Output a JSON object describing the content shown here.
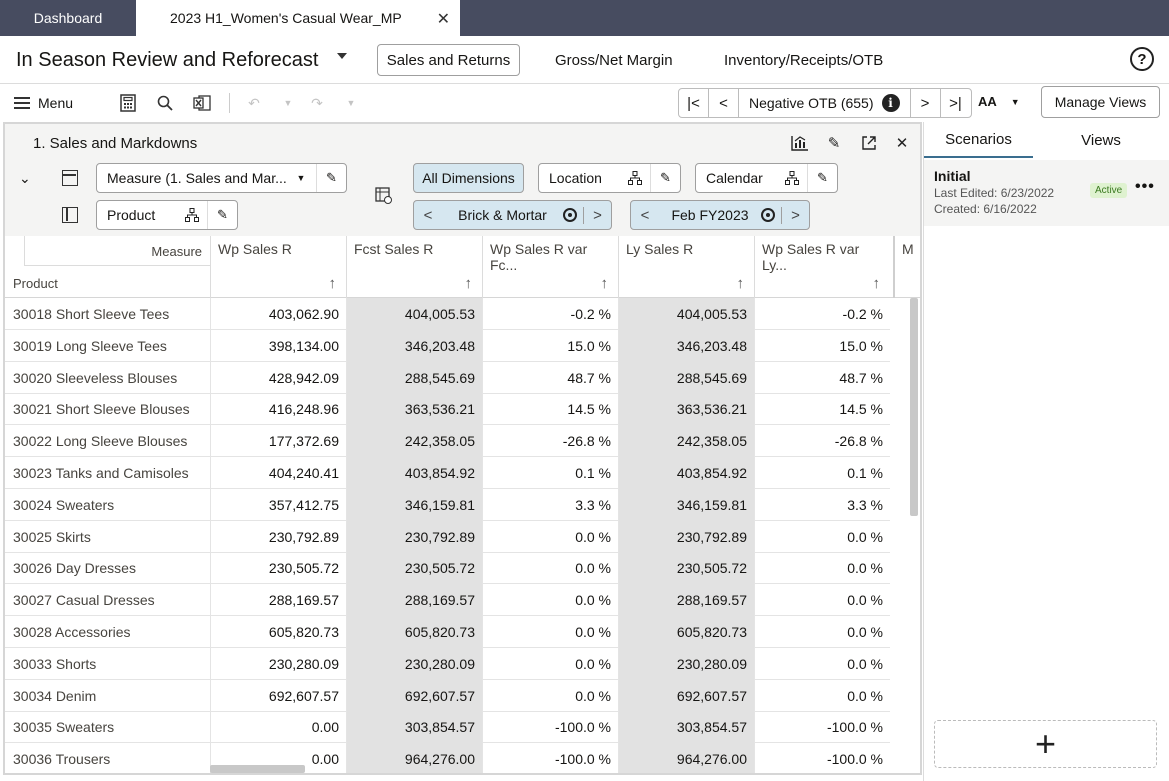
{
  "tabs": {
    "dashboard": "Dashboard",
    "active": "2023 H1_Women's Casual Wear_MP",
    "close_glyph": "✕"
  },
  "header": {
    "title": "In Season Review and Reforecast",
    "tabs": [
      "Sales and Returns",
      "Gross/Net Margin",
      "Inventory/Receipts/OTB"
    ],
    "help": "?"
  },
  "toolbar": {
    "menu_label": "Menu",
    "nav_label": "Negative OTB (655)",
    "info_glyph": "i",
    "font_size_label": "AA",
    "manage_views": "Manage Views"
  },
  "panel": {
    "title": "1. Sales and Markdowns",
    "measure_selector": "Measure (1. Sales and Mar...",
    "all_dimensions": "All Dimensions",
    "location": "Location",
    "calendar": "Calendar",
    "product": "Product",
    "location_page": "Brick & Mortar",
    "calendar_page": "Feb FY2023"
  },
  "grid": {
    "measure_header": "Measure",
    "product_header": "Product",
    "columns": [
      "Wp Sales R",
      "Fcst Sales R",
      "Wp Sales R var Fc...",
      "Ly Sales R",
      "Wp Sales R var Ly...",
      "M"
    ],
    "rows": [
      {
        "name": "30018 Short Sleeve Tees",
        "c1": "403,062.90",
        "c2": "404,005.53",
        "c3": "-0.2 %",
        "c4": "404,005.53",
        "c5": "-0.2 %"
      },
      {
        "name": "30019 Long Sleeve Tees",
        "c1": "398,134.00",
        "c2": "346,203.48",
        "c3": "15.0 %",
        "c4": "346,203.48",
        "c5": "15.0 %"
      },
      {
        "name": "30020 Sleeveless Blouses",
        "c1": "428,942.09",
        "c2": "288,545.69",
        "c3": "48.7 %",
        "c4": "288,545.69",
        "c5": "48.7 %"
      },
      {
        "name": "30021 Short Sleeve Blouses",
        "c1": "416,248.96",
        "c2": "363,536.21",
        "c3": "14.5 %",
        "c4": "363,536.21",
        "c5": "14.5 %"
      },
      {
        "name": "30022 Long Sleeve Blouses",
        "c1": "177,372.69",
        "c2": "242,358.05",
        "c3": "-26.8 %",
        "c4": "242,358.05",
        "c5": "-26.8 %"
      },
      {
        "name": "30023 Tanks and Camisoles",
        "c1": "404,240.41",
        "c2": "403,854.92",
        "c3": "0.1 %",
        "c4": "403,854.92",
        "c5": "0.1 %"
      },
      {
        "name": "30024 Sweaters",
        "c1": "357,412.75",
        "c2": "346,159.81",
        "c3": "3.3 %",
        "c4": "346,159.81",
        "c5": "3.3 %"
      },
      {
        "name": "30025 Skirts",
        "c1": "230,792.89",
        "c2": "230,792.89",
        "c3": "0.0 %",
        "c4": "230,792.89",
        "c5": "0.0 %"
      },
      {
        "name": "30026 Day Dresses",
        "c1": "230,505.72",
        "c2": "230,505.72",
        "c3": "0.0 %",
        "c4": "230,505.72",
        "c5": "0.0 %"
      },
      {
        "name": "30027 Casual Dresses",
        "c1": "288,169.57",
        "c2": "288,169.57",
        "c3": "0.0 %",
        "c4": "288,169.57",
        "c5": "0.0 %"
      },
      {
        "name": "30028 Accessories",
        "c1": "605,820.73",
        "c2": "605,820.73",
        "c3": "0.0 %",
        "c4": "605,820.73",
        "c5": "0.0 %"
      },
      {
        "name": "30033 Shorts",
        "c1": "230,280.09",
        "c2": "230,280.09",
        "c3": "0.0 %",
        "c4": "230,280.09",
        "c5": "0.0 %"
      },
      {
        "name": "30034 Denim",
        "c1": "692,607.57",
        "c2": "692,607.57",
        "c3": "0.0 %",
        "c4": "692,607.57",
        "c5": "0.0 %"
      },
      {
        "name": "30035 Sweaters",
        "c1": "0.00",
        "c2": "303,854.57",
        "c3": "-100.0 %",
        "c4": "303,854.57",
        "c5": "-100.0 %"
      },
      {
        "name": "30036 Trousers",
        "c1": "0.00",
        "c2": "964,276.00",
        "c3": "-100.0 %",
        "c4": "964,276.00",
        "c5": "-100.0 %"
      }
    ]
  },
  "scenarios": {
    "tab_scenarios": "Scenarios",
    "tab_views": "Views",
    "name": "Initial",
    "last_edited": "Last Edited: 6/23/2022",
    "created": "Created: 6/16/2022",
    "badge": "Active",
    "more_glyph": "•••",
    "add_glyph": "+"
  },
  "colors": {
    "tabstrip": "#474c60",
    "accent_tab": "#3a6e8f",
    "selected_bg": "#d6e7f0",
    "shaded_cell": "#e2e2e2"
  }
}
